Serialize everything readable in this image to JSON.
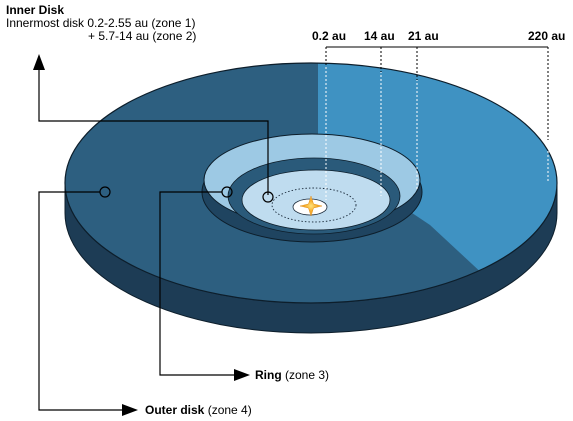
{
  "inner_disk": {
    "title": "Inner Disk",
    "line1": "Innermost disk 0.2-2.55 au (zone 1)",
    "line2": "+ 5.7-14 au (zone 2)"
  },
  "distances": [
    "0.2 au",
    "14 au",
    "21 au",
    "220 au"
  ],
  "ring": {
    "name": "Ring",
    "zone": " (zone 3)"
  },
  "outer_disk": {
    "name": "Outer disk",
    "zone": " (zone 4)"
  },
  "colors": {
    "outer_dark": "#2d5f80",
    "outer_light": "#3f92c2",
    "rim": "#1d3c55",
    "ring_fill": "#9dc9e4",
    "ring_wall": "#2a5a7a",
    "inner_disk": "#bfdcef",
    "star": "#f5a623"
  }
}
